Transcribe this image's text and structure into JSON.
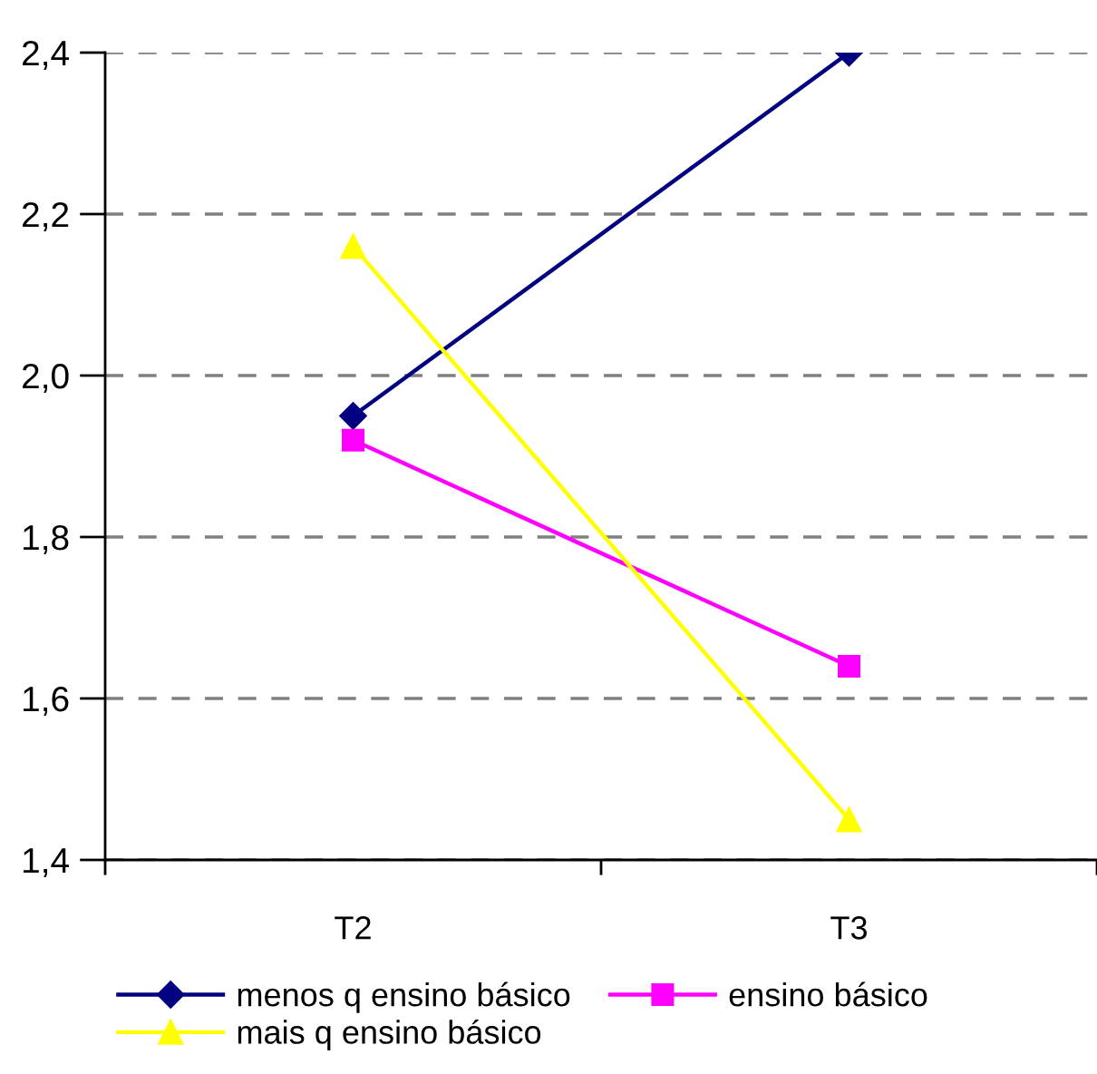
{
  "chart_data": {
    "type": "line",
    "categories": [
      "T2",
      "T3"
    ],
    "series": [
      {
        "name": "menos q ensino básico",
        "color": "#000080",
        "marker": "diamond",
        "values": [
          1.95,
          2.4
        ]
      },
      {
        "name": "ensino básico",
        "color": "#ff00ff",
        "marker": "square",
        "values": [
          1.92,
          1.64
        ]
      },
      {
        "name": "mais q ensino básico",
        "color": "#ffff00",
        "marker": "triangle",
        "values": [
          2.16,
          1.45
        ]
      }
    ],
    "ylim": [
      1.4,
      2.4
    ],
    "yticks": [
      {
        "value": 1.4,
        "label": "1,4"
      },
      {
        "value": 1.6,
        "label": "1,6"
      },
      {
        "value": 1.8,
        "label": "1,8"
      },
      {
        "value": 2.0,
        "label": "2,0"
      },
      {
        "value": 2.2,
        "label": "2,2"
      },
      {
        "value": 2.4,
        "label": "2,4"
      }
    ],
    "grid": "y",
    "legend": "bottom",
    "line_style": "solid"
  }
}
